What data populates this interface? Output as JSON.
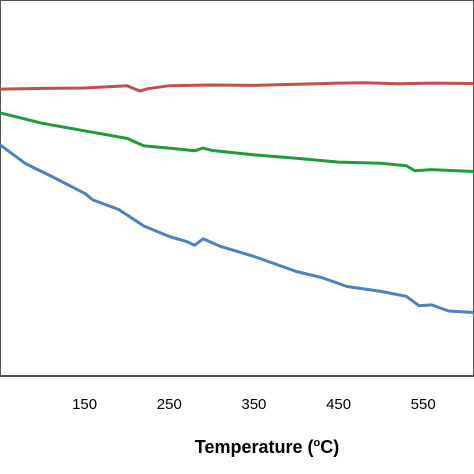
{
  "chart_data": {
    "type": "line",
    "title": "",
    "xlabel": {
      "prefix": "Temperature (",
      "sup": "o",
      "suffix": "C)"
    },
    "ylabel": "",
    "xticks": [
      "150",
      "250",
      "350",
      "450",
      "550"
    ],
    "xlim": [
      50,
      610
    ],
    "ylim": [
      0,
      100
    ],
    "grid": false,
    "legend": "none",
    "series": [
      {
        "color": "#c0504d",
        "points": [
          [
            50,
            76.3
          ],
          [
            100,
            76.5
          ],
          [
            150,
            76.6
          ],
          [
            200,
            77.2
          ],
          [
            215,
            75.8
          ],
          [
            225,
            76.4
          ],
          [
            250,
            77.2
          ],
          [
            300,
            77.4
          ],
          [
            350,
            77.3
          ],
          [
            400,
            77.6
          ],
          [
            450,
            77.9
          ],
          [
            480,
            78.0
          ],
          [
            520,
            77.7
          ],
          [
            560,
            77.9
          ],
          [
            610,
            77.8
          ]
        ]
      },
      {
        "color": "#1f9b3e",
        "points": [
          [
            50,
            70.0
          ],
          [
            100,
            67.2
          ],
          [
            150,
            65.2
          ],
          [
            200,
            63.2
          ],
          [
            220,
            61.2
          ],
          [
            250,
            60.6
          ],
          [
            280,
            59.9
          ],
          [
            290,
            60.6
          ],
          [
            300,
            60.0
          ],
          [
            350,
            58.8
          ],
          [
            400,
            57.9
          ],
          [
            450,
            56.9
          ],
          [
            500,
            56.6
          ],
          [
            530,
            55.9
          ],
          [
            540,
            54.6
          ],
          [
            560,
            54.9
          ],
          [
            610,
            54.4
          ]
        ]
      },
      {
        "color": "#4f81bd",
        "points": [
          [
            50,
            61.5
          ],
          [
            80,
            56.5
          ],
          [
            110,
            53.2
          ],
          [
            150,
            48.6
          ],
          [
            160,
            46.8
          ],
          [
            190,
            44.3
          ],
          [
            220,
            39.9
          ],
          [
            250,
            37.1
          ],
          [
            270,
            35.8
          ],
          [
            280,
            34.8
          ],
          [
            290,
            36.5
          ],
          [
            310,
            34.5
          ],
          [
            350,
            31.8
          ],
          [
            400,
            27.8
          ],
          [
            430,
            26.2
          ],
          [
            460,
            23.8
          ],
          [
            500,
            22.5
          ],
          [
            530,
            21.2
          ],
          [
            545,
            18.7
          ],
          [
            560,
            18.9
          ],
          [
            580,
            17.3
          ],
          [
            610,
            16.9
          ]
        ]
      }
    ]
  }
}
